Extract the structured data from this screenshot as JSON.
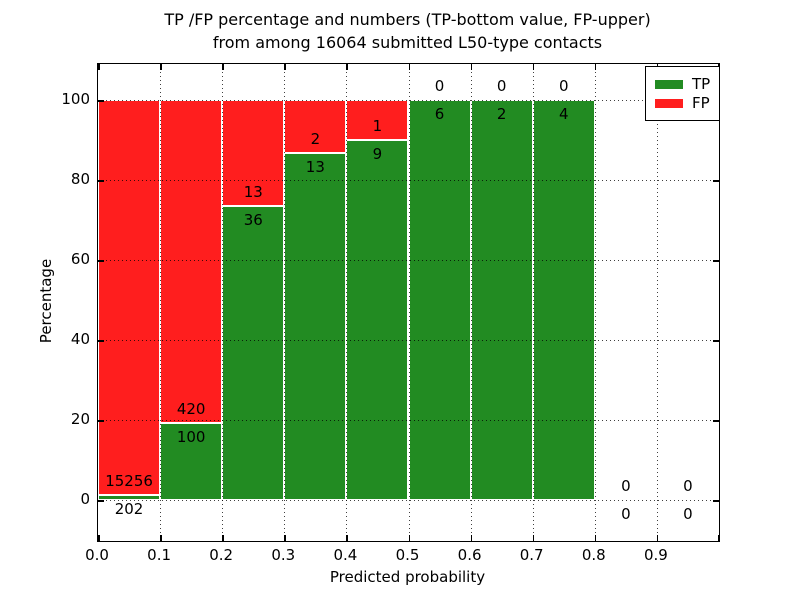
{
  "title": {
    "line1": "TP /FP percentage and numbers (TP-bottom value, FP-upper)",
    "line2": "from among 16064 submitted L50-type contacts"
  },
  "axes": {
    "xlabel": "Predicted probability",
    "ylabel": "Percentage",
    "x_tick_labels": [
      "0.0",
      "0.1",
      "0.2",
      "0.3",
      "0.4",
      "0.5",
      "0.6",
      "0.7",
      "0.8",
      "0.9"
    ],
    "y_tick_labels": [
      "0",
      "20",
      "40",
      "60",
      "80",
      "100"
    ],
    "y_tick_values": [
      0,
      20,
      40,
      60,
      80,
      100
    ],
    "x_range": [
      0.0,
      1.0
    ],
    "grid": true
  },
  "legend": {
    "position": "top-right",
    "items": [
      {
        "label": "TP",
        "color": "#228B22"
      },
      {
        "label": "FP",
        "color": "#FF1E1E"
      }
    ]
  },
  "chart_data": {
    "type": "bar",
    "stacked": true,
    "normalized_to_percent": true,
    "title": "TP /FP percentage and numbers (TP-bottom value, FP-upper) from among 16064 submitted L50-type contacts",
    "xlabel": "Predicted probability",
    "ylabel": "Percentage",
    "total_contacts": 16064,
    "bin_width": 0.1,
    "bin_starts": [
      0.0,
      0.1,
      0.2,
      0.3,
      0.4,
      0.5,
      0.6,
      0.7,
      0.8,
      0.9
    ],
    "categories": [
      "0.0-0.1",
      "0.1-0.2",
      "0.2-0.3",
      "0.3-0.4",
      "0.4-0.5",
      "0.5-0.6",
      "0.6-0.7",
      "0.7-0.8",
      "0.8-0.9",
      "0.9-1.0"
    ],
    "series": [
      {
        "name": "TP",
        "color": "#228B22",
        "counts": [
          202,
          100,
          36,
          13,
          9,
          6,
          2,
          4,
          0,
          0
        ]
      },
      {
        "name": "FP",
        "color": "#FF1E1E",
        "counts": [
          15256,
          420,
          13,
          2,
          1,
          0,
          0,
          0,
          0,
          0
        ]
      }
    ],
    "tp_percent": [
      1.31,
      19.23,
      73.47,
      86.67,
      90.0,
      100.0,
      100.0,
      100.0,
      null,
      null
    ],
    "ylim_percent": [
      0,
      100
    ],
    "legend_position": "upper right",
    "grid": true
  },
  "colors": {
    "tp": "#228B22",
    "fp": "#FF1E1E",
    "bar_edge": "#FFFFFF",
    "grid": "#000000",
    "background": "#FFFFFF",
    "text": "#000000"
  }
}
